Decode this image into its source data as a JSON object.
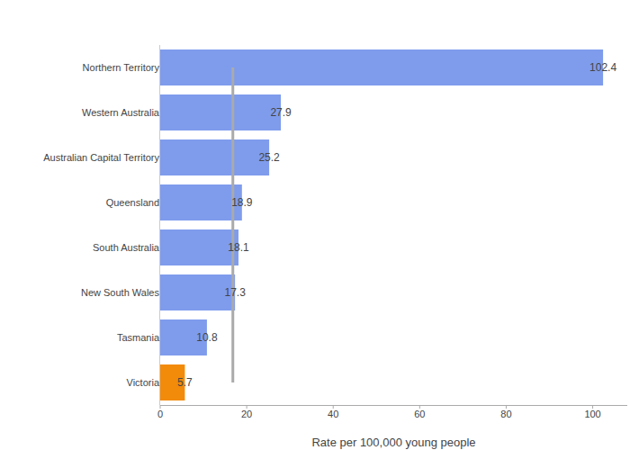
{
  "chart_data": {
    "type": "bar",
    "orientation": "horizontal",
    "categories": [
      "Northern Territory",
      "Western Australia",
      "Australian Capital Territory",
      "Queensland",
      "South Australia",
      "New South Wales",
      "Tasmania",
      "Victoria"
    ],
    "values": [
      102.4,
      27.9,
      25.2,
      18.9,
      18.1,
      17.3,
      10.8,
      5.7
    ],
    "colors": [
      "#7f9cec",
      "#7f9cec",
      "#7f9cec",
      "#7f9cec",
      "#7f9cec",
      "#7f9cec",
      "#7f9cec",
      "#f28a0a"
    ],
    "reference_line": 16.8,
    "xlabel": "Rate per 100,000 young people",
    "xlim": [
      0,
      108
    ],
    "xticks": [
      0,
      20,
      40,
      60,
      80,
      100
    ],
    "grid": false,
    "data_labels": true
  }
}
